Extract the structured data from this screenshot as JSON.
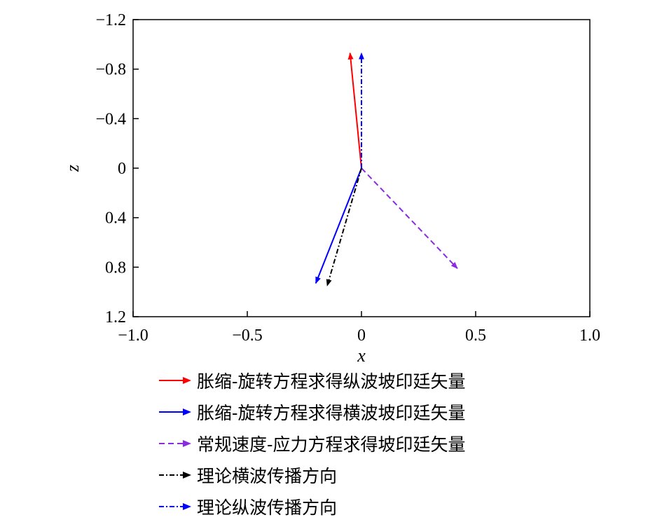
{
  "chart_data": {
    "type": "vector",
    "xlabel": "x",
    "ylabel": "z",
    "xlim": [
      -1.0,
      1.0
    ],
    "ylim": [
      -1.2,
      1.2
    ],
    "y_inverted": true,
    "xticks": [
      -1.0,
      -0.5,
      0,
      0.5,
      1.0
    ],
    "xtick_labels": [
      "−1.0",
      "−0.5",
      "0",
      "0.5",
      "1.0"
    ],
    "yticks": [
      -1.2,
      -0.8,
      -0.4,
      0,
      0.4,
      0.8,
      1.2
    ],
    "ytick_labels": [
      "−1.2",
      "−0.8",
      "−0.4",
      "0",
      "0.4",
      "0.8",
      "1.2"
    ],
    "legend_placement": "below",
    "series": [
      {
        "name": "胀缩-旋转方程求得纵波坡印廷矢量",
        "color": "#ff0000",
        "dash": "solid",
        "start": [
          0,
          0
        ],
        "end": [
          -0.05,
          -0.93
        ]
      },
      {
        "name": "胀缩-旋转方程求得横波坡印廷矢量",
        "color": "#0000ff",
        "dash": "solid",
        "start": [
          0,
          0
        ],
        "end": [
          -0.2,
          0.93
        ]
      },
      {
        "name": "常规速度-应力方程求得坡印廷矢量",
        "color": "#8a2be2",
        "dash": "dashed",
        "start": [
          0,
          0
        ],
        "end": [
          0.42,
          0.81
        ]
      },
      {
        "name": "理论横波传播方向",
        "color": "#000000",
        "dash": "dashdot",
        "start": [
          0,
          0
        ],
        "end": [
          -0.15,
          0.95
        ]
      },
      {
        "name": "理论纵波传播方向",
        "color": "#0000ff",
        "dash": "dashdot",
        "start": [
          0,
          0
        ],
        "end": [
          0,
          -0.93
        ]
      }
    ]
  }
}
